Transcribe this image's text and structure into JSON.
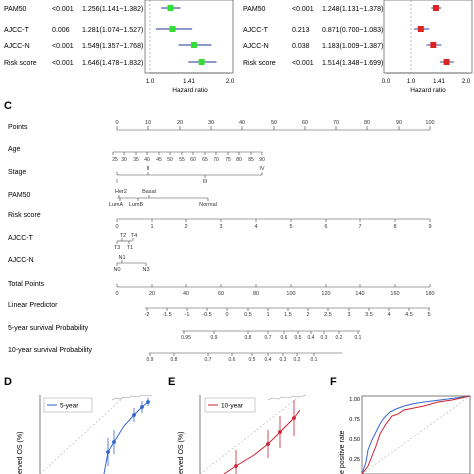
{
  "forest_left": {
    "rows": [
      {
        "name": "PAM50",
        "p": "<0.001",
        "hr": "1.256(1.141~1.382)"
      },
      {
        "name": "AJCC-T",
        "p": "0.006",
        "hr": "1.281(1.074~1.527)"
      },
      {
        "name": "AJCC-N",
        "p": "<0.001",
        "hr": "1.549(1.357~1.768)"
      },
      {
        "name": "Risk score",
        "p": "<0.001",
        "hr": "1.646(1.478~1.832)"
      }
    ],
    "ticks": [
      "1.0",
      "1.41",
      "2.0"
    ],
    "xlabel": "Hazard ratio",
    "color": "#33dd33"
  },
  "forest_right": {
    "rows": [
      {
        "name": "PAM50",
        "p": "<0.001",
        "hr": "1.248(1.131~1.378)"
      },
      {
        "name": "AJCC-T",
        "p": "0.213",
        "hr": "0.871(0.700~1.083)"
      },
      {
        "name": "AJCC-N",
        "p": "0.038",
        "hr": "1.183(1.009~1.387)"
      },
      {
        "name": "Risk score",
        "p": "<0.001",
        "hr": "1.514(1.348~1.699)"
      }
    ],
    "ticks": [
      "0.0",
      "1.0",
      "1.41",
      "2.0"
    ],
    "xlabel": "Hazard ratio",
    "color": "#dd2222"
  },
  "nomogram": {
    "panel_label": "C",
    "rows": [
      {
        "label": "Points",
        "ticks": [
          "0",
          "10",
          "20",
          "30",
          "40",
          "50",
          "60",
          "70",
          "80",
          "90",
          "100"
        ]
      },
      {
        "label": "Age",
        "ticks": [
          "25",
          "30",
          "35",
          "40",
          "45",
          "50",
          "55",
          "60",
          "65",
          "70",
          "75",
          "80",
          "85",
          "90"
        ]
      },
      {
        "label": "Stage",
        "ticks": [
          "I",
          "II",
          "III",
          "IV"
        ]
      },
      {
        "label": "PAM50",
        "ticks": [
          "Her2",
          "Basal",
          "LumA",
          "LumB",
          "Normal"
        ]
      },
      {
        "label": "Risk score",
        "ticks": [
          "0",
          "1",
          "2",
          "3",
          "4",
          "5",
          "6",
          "7",
          "8",
          "9"
        ]
      },
      {
        "label": "AJCC-T",
        "ticks": [
          "T2",
          "T4",
          "T3",
          "T1"
        ]
      },
      {
        "label": "AJCC-N",
        "ticks": [
          "N1",
          "N0",
          "N3"
        ]
      },
      {
        "label": "Total Points",
        "ticks": [
          "0",
          "20",
          "40",
          "60",
          "80",
          "100",
          "120",
          "140",
          "160",
          "180"
        ]
      },
      {
        "label": "Linear Predictor",
        "ticks": [
          "-2",
          "-1.5",
          "-1",
          "-0.5",
          "0",
          "0.5",
          "1",
          "1.5",
          "2",
          "2.5",
          "3",
          "3.5",
          "4",
          "4.5",
          "5"
        ]
      },
      {
        "label": "5-year survival Probability",
        "ticks": [
          "0.95",
          "0.9",
          "0.8",
          "0.7",
          "0.6",
          "0.5",
          "0.4",
          "0.3",
          "0.2",
          "0.1"
        ]
      },
      {
        "label": "10-year survival Probability",
        "ticks": [
          "0.9",
          "0.8",
          "0.7",
          "0.6",
          "0.5",
          "0.4",
          "0.3",
          "0.2",
          "0.1"
        ]
      }
    ]
  },
  "calib_d": {
    "panel_label": "D",
    "legend": "5-year",
    "ylabel": "erved OS (%)",
    "color": "#3366cc"
  },
  "calib_e": {
    "panel_label": "E",
    "legend": "10-year",
    "ylabel": "erved OS (%)",
    "color": "#cc2233"
  },
  "roc_f": {
    "panel_label": "F",
    "ylabel": "e positive rate",
    "ticks": [
      "1.00",
      "0.75",
      "0.50",
      "0.25"
    ]
  },
  "chart_data": [
    {
      "type": "forest",
      "categories": [
        "PAM50",
        "AJCC-T",
        "AJCC-N",
        "Risk score"
      ],
      "hr": [
        1.256,
        1.281,
        1.549,
        1.646
      ],
      "lower": [
        1.141,
        1.074,
        1.357,
        1.478
      ],
      "upper": [
        1.382,
        1.527,
        1.768,
        1.832
      ],
      "xlabel": "Hazard ratio",
      "xlim": [
        1.0,
        2.0
      ]
    },
    {
      "type": "forest",
      "categories": [
        "PAM50",
        "AJCC-T",
        "AJCC-N",
        "Risk score"
      ],
      "hr": [
        1.248,
        0.871,
        1.183,
        1.514
      ],
      "lower": [
        1.131,
        0.7,
        1.009,
        1.348
      ],
      "upper": [
        1.378,
        1.083,
        1.387,
        1.699
      ],
      "xlabel": "Hazard ratio",
      "xlim": [
        0.0,
        2.0
      ]
    }
  ]
}
